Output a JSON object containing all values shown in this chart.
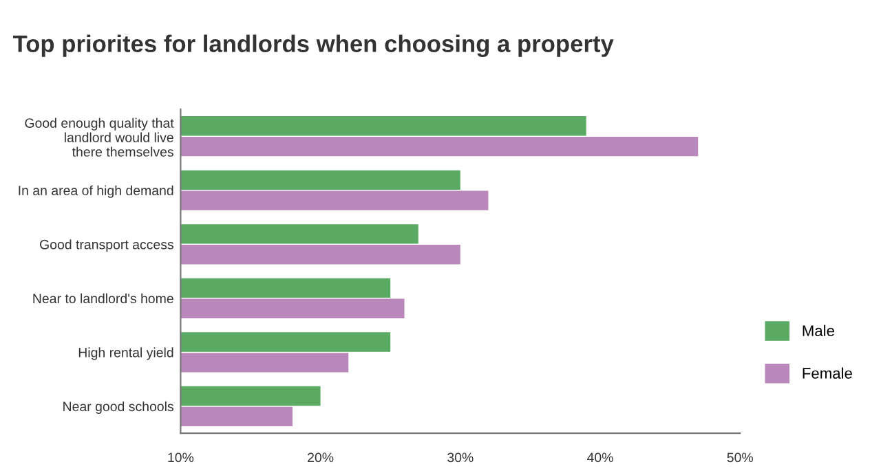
{
  "chart_data": {
    "type": "bar",
    "orientation": "horizontal",
    "title": "Top priorites for landlords when choosing a property",
    "categories": [
      "Good enough quality that\nlandlord would live\nthere themselves",
      "In an area of high demand",
      "Good transport access",
      "Near to landlord's home",
      "High rental yield",
      "Near good schools"
    ],
    "series": [
      {
        "name": "Male",
        "color": "#5aaa64",
        "values": [
          39,
          30,
          27,
          25,
          25,
          20
        ]
      },
      {
        "name": "Female",
        "color": "#b987ba",
        "values": [
          47,
          32,
          30,
          26,
          22,
          18
        ]
      }
    ],
    "xlim": [
      10,
      50
    ],
    "xticks": [
      {
        "value": 10,
        "label": "10%"
      },
      {
        "value": 20,
        "label": "20%"
      },
      {
        "value": 30,
        "label": "30%"
      },
      {
        "value": 40,
        "label": "40%"
      },
      {
        "value": 50,
        "label": "50%"
      }
    ],
    "grid": false,
    "legend": "right"
  }
}
